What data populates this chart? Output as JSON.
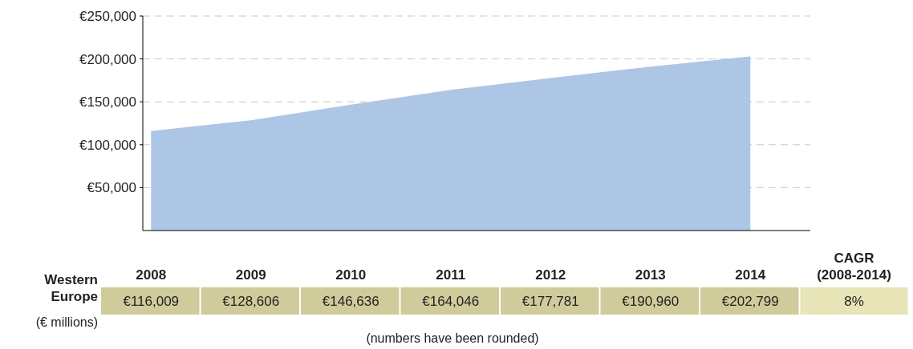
{
  "chart_data": {
    "type": "area",
    "categories": [
      "2008",
      "2009",
      "2010",
      "2011",
      "2012",
      "2013",
      "2014"
    ],
    "series": [
      {
        "name": "Western Europe",
        "color": "#adc6e6",
        "values": [
          116009,
          128606,
          146636,
          164046,
          177781,
          190960,
          202799
        ],
        "value_labels": [
          "€116,009",
          "€128,606",
          "€146,636",
          "€164,046",
          "€177,781",
          "€190,960",
          "€202,799"
        ]
      }
    ],
    "ylabel": "(€ millions)",
    "ylim": [
      0,
      250000
    ],
    "yticks": [
      {
        "value": 50000,
        "label": "€50,000"
      },
      {
        "value": 100000,
        "label": "€100,000"
      },
      {
        "value": 150000,
        "label": "€150,000"
      },
      {
        "value": 200000,
        "label": "€200,000"
      },
      {
        "value": 250000,
        "label": "€250,000"
      }
    ],
    "grid": "y",
    "annotations": [
      "CAGR (2008-2014)",
      "8%",
      "(numbers have been rounded)"
    ]
  }
}
